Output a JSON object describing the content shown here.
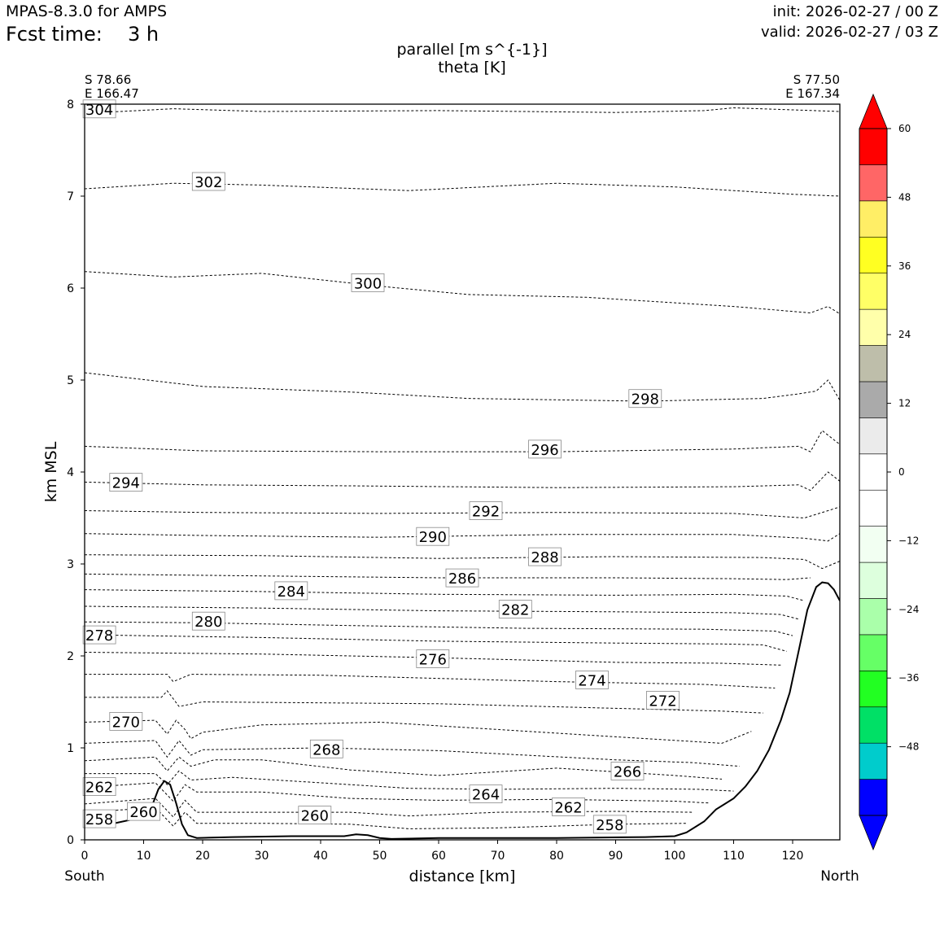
{
  "header": {
    "model": "MPAS-8.3.0 for AMPS",
    "fcst_label": "Fcst time:",
    "fcst_value": "3 h",
    "init": "init: 2026-02-27 / 00 Z",
    "valid": "valid: 2026-02-27 / 03 Z"
  },
  "chart_data": {
    "type": "cross-section",
    "title_line1": "parallel [m s^{-1}]",
    "title_line2": "theta [K]",
    "left_coord": [
      "S 78.66",
      "E 166.47"
    ],
    "right_coord": [
      "S 77.50",
      "E 167.34"
    ],
    "xlabel": "distance [km]",
    "ylabel": "km MSL",
    "x_left_label": "South",
    "x_right_label": "North",
    "xlim": [
      0,
      128
    ],
    "ylim": [
      0,
      8
    ],
    "x_ticks": [
      0,
      10,
      20,
      30,
      40,
      50,
      60,
      70,
      80,
      90,
      100,
      110,
      120
    ],
    "y_ticks": [
      0,
      1,
      2,
      3,
      4,
      5,
      6,
      7,
      8
    ],
    "terrain": [
      [
        0,
        0.17
      ],
      [
        5,
        0.18
      ],
      [
        8,
        0.22
      ],
      [
        11,
        0.3
      ],
      [
        12.5,
        0.55
      ],
      [
        13.5,
        0.64
      ],
      [
        14.5,
        0.6
      ],
      [
        15.5,
        0.4
      ],
      [
        16.5,
        0.17
      ],
      [
        17.5,
        0.05
      ],
      [
        19,
        0.02
      ],
      [
        25,
        0.03
      ],
      [
        35,
        0.04
      ],
      [
        44,
        0.04
      ],
      [
        46,
        0.06
      ],
      [
        48,
        0.05
      ],
      [
        50,
        0.02
      ],
      [
        52,
        0.01
      ],
      [
        60,
        0.02
      ],
      [
        80,
        0.02
      ],
      [
        95,
        0.03
      ],
      [
        100,
        0.04
      ],
      [
        102,
        0.08
      ],
      [
        105,
        0.2
      ],
      [
        107,
        0.33
      ],
      [
        110,
        0.45
      ],
      [
        112,
        0.58
      ],
      [
        114,
        0.75
      ],
      [
        116,
        0.98
      ],
      [
        118,
        1.3
      ],
      [
        119.5,
        1.6
      ],
      [
        121,
        2.05
      ],
      [
        122.5,
        2.5
      ],
      [
        124,
        2.75
      ],
      [
        125,
        2.8
      ],
      [
        126,
        2.79
      ],
      [
        127,
        2.72
      ],
      [
        128,
        2.6
      ]
    ],
    "theta_contours": [
      {
        "level": "304",
        "points": [
          [
            0,
            7.9
          ],
          [
            15,
            7.95
          ],
          [
            30,
            7.92
          ],
          [
            60,
            7.93
          ],
          [
            90,
            7.91
          ],
          [
            105,
            7.93
          ],
          [
            110,
            7.96
          ],
          [
            128,
            7.92
          ]
        ],
        "labels": [
          [
            2.5,
            7.94
          ]
        ]
      },
      {
        "level": "302",
        "points": [
          [
            0,
            7.08
          ],
          [
            15,
            7.14
          ],
          [
            30,
            7.12
          ],
          [
            55,
            7.06
          ],
          [
            80,
            7.14
          ],
          [
            100,
            7.1
          ],
          [
            120,
            7.02
          ],
          [
            128,
            7.0
          ]
        ],
        "labels": [
          [
            21,
            7.15
          ]
        ]
      },
      {
        "level": "300",
        "points": [
          [
            0,
            6.18
          ],
          [
            15,
            6.12
          ],
          [
            30,
            6.16
          ],
          [
            50,
            6.02
          ],
          [
            65,
            5.93
          ],
          [
            85,
            5.9
          ],
          [
            110,
            5.8
          ],
          [
            123,
            5.73
          ],
          [
            126,
            5.8
          ],
          [
            128,
            5.72
          ]
        ],
        "labels": [
          [
            48,
            6.05
          ]
        ]
      },
      {
        "level": "298",
        "points": [
          [
            0,
            5.08
          ],
          [
            20,
            4.93
          ],
          [
            45,
            4.87
          ],
          [
            65,
            4.8
          ],
          [
            95,
            4.77
          ],
          [
            115,
            4.8
          ],
          [
            121,
            4.85
          ],
          [
            124,
            4.88
          ],
          [
            126,
            5.0
          ],
          [
            128,
            4.78
          ]
        ],
        "labels": [
          [
            95,
            4.79
          ]
        ]
      },
      {
        "level": "296",
        "points": [
          [
            0,
            4.28
          ],
          [
            20,
            4.23
          ],
          [
            50,
            4.22
          ],
          [
            80,
            4.22
          ],
          [
            110,
            4.25
          ],
          [
            121,
            4.28
          ],
          [
            123,
            4.22
          ],
          [
            125,
            4.45
          ],
          [
            128,
            4.3
          ]
        ],
        "labels": [
          [
            78,
            4.24
          ]
        ]
      },
      {
        "level": "294",
        "points": [
          [
            0,
            3.89
          ],
          [
            20,
            3.86
          ],
          [
            45,
            3.85
          ],
          [
            80,
            3.83
          ],
          [
            110,
            3.84
          ],
          [
            121,
            3.86
          ],
          [
            123,
            3.8
          ],
          [
            126,
            4.0
          ],
          [
            128,
            3.9
          ]
        ],
        "labels": [
          [
            7,
            3.88
          ]
        ]
      },
      {
        "level": "292",
        "points": [
          [
            0,
            3.58
          ],
          [
            20,
            3.56
          ],
          [
            50,
            3.55
          ],
          [
            80,
            3.56
          ],
          [
            110,
            3.55
          ],
          [
            122,
            3.5
          ],
          [
            126,
            3.58
          ],
          [
            128,
            3.62
          ]
        ],
        "labels": [
          [
            68,
            3.57
          ]
        ]
      },
      {
        "level": "290",
        "points": [
          [
            0,
            3.33
          ],
          [
            20,
            3.31
          ],
          [
            50,
            3.29
          ],
          [
            80,
            3.32
          ],
          [
            110,
            3.32
          ],
          [
            122,
            3.28
          ],
          [
            126,
            3.25
          ],
          [
            128,
            3.33
          ]
        ],
        "labels": [
          [
            59,
            3.29
          ]
        ]
      },
      {
        "level": "288",
        "points": [
          [
            0,
            3.1
          ],
          [
            30,
            3.09
          ],
          [
            60,
            3.06
          ],
          [
            90,
            3.08
          ],
          [
            115,
            3.07
          ],
          [
            122,
            3.05
          ],
          [
            125,
            2.95
          ],
          [
            128,
            3.03
          ]
        ],
        "labels": [
          [
            78,
            3.07
          ]
        ]
      },
      {
        "level": "286",
        "points": [
          [
            0,
            2.89
          ],
          [
            30,
            2.87
          ],
          [
            60,
            2.85
          ],
          [
            90,
            2.85
          ],
          [
            110,
            2.84
          ],
          [
            119,
            2.83
          ],
          [
            123,
            2.85
          ]
        ],
        "labels": [
          [
            64,
            2.84
          ]
        ]
      },
      {
        "level": "284",
        "points": [
          [
            0,
            2.72
          ],
          [
            30,
            2.7
          ],
          [
            60,
            2.67
          ],
          [
            90,
            2.66
          ],
          [
            110,
            2.67
          ],
          [
            119,
            2.65
          ],
          [
            122,
            2.6
          ]
        ],
        "labels": [
          [
            35,
            2.7
          ]
        ]
      },
      {
        "level": "282",
        "points": [
          [
            0,
            2.54
          ],
          [
            30,
            2.52
          ],
          [
            60,
            2.49
          ],
          [
            90,
            2.48
          ],
          [
            110,
            2.47
          ],
          [
            118,
            2.45
          ],
          [
            121,
            2.4
          ]
        ],
        "labels": [
          [
            73,
            2.5
          ]
        ]
      },
      {
        "level": "280",
        "points": [
          [
            0,
            2.37
          ],
          [
            20,
            2.36
          ],
          [
            45,
            2.33
          ],
          [
            75,
            2.3
          ],
          [
            105,
            2.29
          ],
          [
            117,
            2.27
          ],
          [
            120,
            2.22
          ]
        ],
        "labels": [
          [
            21,
            2.37
          ]
        ]
      },
      {
        "level": "278",
        "points": [
          [
            0,
            2.23
          ],
          [
            30,
            2.2
          ],
          [
            60,
            2.16
          ],
          [
            90,
            2.14
          ],
          [
            108,
            2.13
          ],
          [
            115,
            2.12
          ],
          [
            119,
            2.05
          ]
        ],
        "labels": [
          [
            2.5,
            2.22
          ]
        ]
      },
      {
        "level": "276",
        "points": [
          [
            0,
            2.04
          ],
          [
            30,
            2.02
          ],
          [
            60,
            1.98
          ],
          [
            90,
            1.93
          ],
          [
            108,
            1.92
          ],
          [
            118,
            1.9
          ]
        ],
        "labels": [
          [
            59,
            1.96
          ]
        ]
      },
      {
        "level": "274",
        "points": [
          [
            0,
            1.8
          ],
          [
            14,
            1.8
          ],
          [
            15,
            1.72
          ],
          [
            18,
            1.8
          ],
          [
            40,
            1.79
          ],
          [
            80,
            1.72
          ],
          [
            105,
            1.69
          ],
          [
            117,
            1.65
          ]
        ],
        "labels": [
          [
            86,
            1.73
          ]
        ]
      },
      {
        "level": "272",
        "points": [
          [
            0,
            1.55
          ],
          [
            13,
            1.55
          ],
          [
            14,
            1.62
          ],
          [
            16,
            1.45
          ],
          [
            20,
            1.5
          ],
          [
            60,
            1.48
          ],
          [
            90,
            1.43
          ],
          [
            108,
            1.4
          ],
          [
            115,
            1.38
          ]
        ],
        "labels": [
          [
            98,
            1.51
          ]
        ]
      },
      {
        "level": "270",
        "points": [
          [
            0,
            1.28
          ],
          [
            12,
            1.3
          ],
          [
            14,
            1.15
          ],
          [
            15.5,
            1.3
          ],
          [
            17,
            1.2
          ],
          [
            18,
            1.1
          ],
          [
            20,
            1.17
          ],
          [
            30,
            1.25
          ],
          [
            50,
            1.28
          ],
          [
            70,
            1.2
          ],
          [
            90,
            1.12
          ],
          [
            103,
            1.07
          ],
          [
            108,
            1.05
          ],
          [
            113,
            1.18
          ]
        ],
        "labels": [
          [
            7,
            1.28
          ]
        ]
      },
      {
        "level": "268",
        "points": [
          [
            0,
            1.05
          ],
          [
            12,
            1.08
          ],
          [
            14,
            0.9
          ],
          [
            16,
            1.08
          ],
          [
            18,
            0.92
          ],
          [
            20,
            0.98
          ],
          [
            40,
            1.0
          ],
          [
            60,
            0.97
          ],
          [
            90,
            0.87
          ],
          [
            103,
            0.84
          ],
          [
            111,
            0.8
          ]
        ],
        "labels": [
          [
            41,
            0.98
          ]
        ]
      },
      {
        "level": "266",
        "points": [
          [
            0,
            0.86
          ],
          [
            12,
            0.9
          ],
          [
            14,
            0.75
          ],
          [
            16,
            0.9
          ],
          [
            18,
            0.8
          ],
          [
            22,
            0.87
          ],
          [
            30,
            0.87
          ],
          [
            45,
            0.76
          ],
          [
            60,
            0.7
          ],
          [
            80,
            0.78
          ],
          [
            100,
            0.7
          ],
          [
            108,
            0.66
          ]
        ],
        "labels": [
          [
            92,
            0.74
          ]
        ]
      },
      {
        "level": "264",
        "points": [
          [
            0,
            0.72
          ],
          [
            12,
            0.72
          ],
          [
            14,
            0.6
          ],
          [
            16,
            0.75
          ],
          [
            18,
            0.65
          ],
          [
            25,
            0.68
          ],
          [
            40,
            0.62
          ],
          [
            55,
            0.56
          ],
          [
            70,
            0.55
          ],
          [
            90,
            0.56
          ],
          [
            104,
            0.55
          ],
          [
            110,
            0.53
          ]
        ],
        "labels": [
          [
            68,
            0.49
          ]
        ]
      },
      {
        "level": "262",
        "points": [
          [
            0,
            0.57
          ],
          [
            12,
            0.62
          ],
          [
            15,
            0.42
          ],
          [
            17,
            0.6
          ],
          [
            19,
            0.52
          ],
          [
            30,
            0.52
          ],
          [
            45,
            0.45
          ],
          [
            60,
            0.43
          ],
          [
            80,
            0.44
          ],
          [
            100,
            0.42
          ],
          [
            106,
            0.4
          ]
        ],
        "labels": [
          [
            2.5,
            0.57
          ],
          [
            82,
            0.35
          ]
        ]
      },
      {
        "level": "260",
        "points": [
          [
            0,
            0.39
          ],
          [
            12,
            0.45
          ],
          [
            15,
            0.25
          ],
          [
            17,
            0.43
          ],
          [
            19,
            0.3
          ],
          [
            30,
            0.3
          ],
          [
            45,
            0.3
          ],
          [
            55,
            0.26
          ],
          [
            70,
            0.3
          ],
          [
            90,
            0.31
          ],
          [
            103,
            0.3
          ]
        ],
        "labels": [
          [
            10,
            0.3
          ],
          [
            39,
            0.26
          ]
        ]
      },
      {
        "level": "258",
        "points": [
          [
            0,
            0.3
          ],
          [
            12,
            0.35
          ],
          [
            15,
            0.15
          ],
          [
            17,
            0.3
          ],
          [
            19,
            0.18
          ],
          [
            30,
            0.18
          ],
          [
            45,
            0.17
          ],
          [
            55,
            0.12
          ],
          [
            70,
            0.13
          ],
          [
            90,
            0.17
          ],
          [
            102,
            0.18
          ]
        ],
        "labels": [
          [
            2.5,
            0.22
          ],
          [
            89,
            0.16
          ]
        ]
      }
    ],
    "colorbar": {
      "ticks": [
        "60",
        "48",
        "36",
        "24",
        "12",
        "0",
        "−12",
        "−24",
        "−36",
        "−48"
      ],
      "levels": [
        -60,
        60
      ],
      "colors": [
        "#0000ff",
        "#00cccc",
        "#00e066",
        "#22ff22",
        "#66ff66",
        "#aaffaa",
        "#ddffdd",
        "#f2fff2",
        "#ffffff",
        "#ffffff",
        "#ebebeb",
        "#aaaaaa",
        "#bebeaa",
        "#ffffaa",
        "#ffff66",
        "#ffff22",
        "#ffee66",
        "#ff6666",
        "#ff0000"
      ],
      "under_color": "#0000ff",
      "over_color": "#ff0000"
    }
  }
}
